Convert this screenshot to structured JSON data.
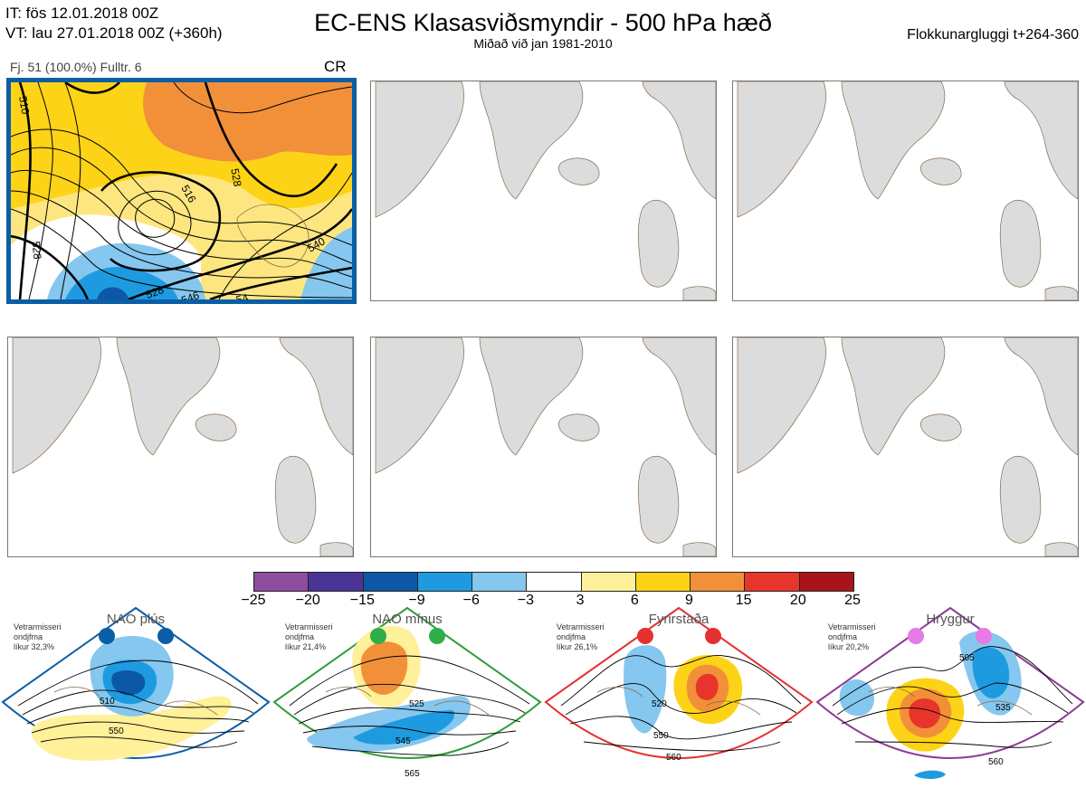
{
  "header": {
    "it_line": "IT: fös 12.01.2018 00Z",
    "vt_line": "VT: lau 27.01.2018 00Z  (+360h)",
    "title": "EC-ENS Klasasviðsmyndir - 500 hPa hæð",
    "subtitle": "Miðað við jan 1981-2010",
    "window": "Flokkunargluggi t+264-360"
  },
  "cluster_panel": {
    "info": "Fj. 51 (100.0%)   Fulltr. 6",
    "tag": "CR",
    "contour_labels": [
      "510",
      "528",
      "516",
      "528",
      "540",
      "528",
      "546",
      "54"
    ]
  },
  "colors": {
    "land": "#dcdcdc",
    "coast": "#8a6a4a",
    "active_border": "#0b5ea6",
    "nao_plus": "#0b5ea6",
    "nao_minus": "#2f9e3a",
    "blocking": "#e53030",
    "ridge": "#8e3a96"
  },
  "colorbar": {
    "colors": [
      "#8e4c9e",
      "#4a3597",
      "#0d58a6",
      "#1e9be0",
      "#85c7ee",
      "#ffffff",
      "#fff09a",
      "#fdd317",
      "#f2903a",
      "#e8352b",
      "#a8141c"
    ],
    "ticks": [
      "−25",
      "−20",
      "−15",
      "−9",
      "−6",
      "−3",
      "3",
      "6",
      "9",
      "15",
      "20",
      "25"
    ]
  },
  "regimes": [
    {
      "title": "NAO plús",
      "note": [
        "Vetrarmisseri",
        "ondjfma",
        "líkur 32,3%"
      ],
      "labels": [
        "510",
        "550"
      ],
      "dot_color": "#0b5ea6"
    },
    {
      "title": "NAO mínus",
      "note": [
        "Vetrarmisseri",
        "ondjfma",
        "líkur 21,4%"
      ],
      "labels": [
        "525",
        "545",
        "565"
      ],
      "dot_color": "#2fae4a"
    },
    {
      "title": "Fyrirstaða",
      "note": [
        "Vetrarmisseri",
        "ondjfma",
        "líkur 26,1%"
      ],
      "labels": [
        "520",
        "550",
        "560"
      ],
      "dot_color": "#e53030"
    },
    {
      "title": "Hryggur",
      "note": [
        "Vetrarmisseri",
        "ondjfma",
        "líkur 20,2%"
      ],
      "labels": [
        "505",
        "535",
        "560"
      ],
      "dot_color": "#e67ae6"
    }
  ]
}
